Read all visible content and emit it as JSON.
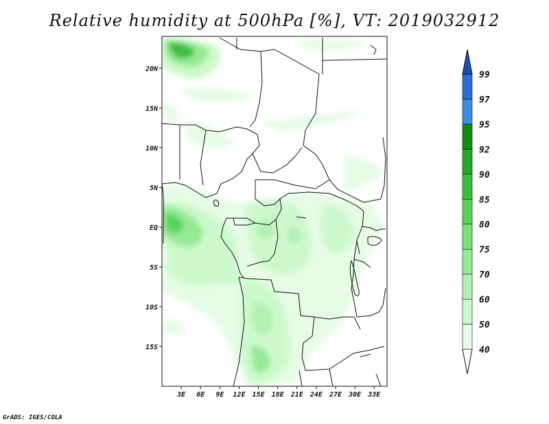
{
  "title": "Relative humidity at 500hPa [%], VT: 2019032912",
  "credit": "GrADS: IGES/COLA",
  "map": {
    "lon_range": [
      0,
      35
    ],
    "lat_range": [
      -20,
      24
    ],
    "x_ticks": [
      "3E",
      "6E",
      "9E",
      "12E",
      "15E",
      "18E",
      "21E",
      "24E",
      "27E",
      "30E",
      "33E"
    ],
    "x_tick_values": [
      3,
      6,
      9,
      12,
      15,
      18,
      21,
      24,
      27,
      30,
      33
    ],
    "y_ticks": [
      "20N",
      "15N",
      "10N",
      "5N",
      "EQ",
      "5S",
      "10S",
      "15S"
    ],
    "y_tick_values": [
      20,
      15,
      10,
      5,
      0,
      -5,
      -10,
      -15
    ]
  },
  "colorbar": {
    "levels": [
      "40",
      "50",
      "60",
      "70",
      "75",
      "80",
      "85",
      "90",
      "92",
      "95",
      "97",
      "99"
    ],
    "colors": [
      "#ffffff",
      "#e6fce6",
      "#ccf9cc",
      "#b2f2b2",
      "#96ea96",
      "#78e078",
      "#5ad25a",
      "#3cbe3c",
      "#26a826",
      "#128c12",
      "#3c8ce6",
      "#2a6ed8",
      "#1a50b8"
    ]
  }
}
